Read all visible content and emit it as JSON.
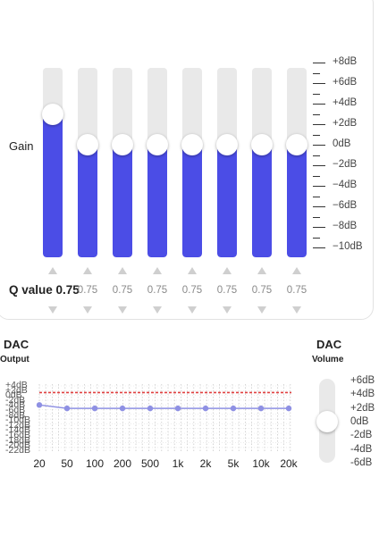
{
  "eq": {
    "gain_label": "Gain",
    "q_label": "Q value 0.75",
    "bands": [
      {
        "gain_db": 3.0,
        "q": "0.75"
      },
      {
        "gain_db": 0,
        "q": "0.75"
      },
      {
        "gain_db": 0,
        "q": "0.75"
      },
      {
        "gain_db": 0,
        "q": "0.75"
      },
      {
        "gain_db": 0,
        "q": "0.75"
      },
      {
        "gain_db": 0,
        "q": "0.75"
      },
      {
        "gain_db": 0,
        "q": "0.75"
      },
      {
        "gain_db": 0,
        "q": "0.75"
      }
    ],
    "scale_labels": [
      "+8dB",
      "+6dB",
      "+4dB",
      "+2dB",
      "0dB",
      "−2dB",
      "−4dB",
      "−6dB",
      "−8dB",
      "−10dB"
    ]
  },
  "dac": {
    "title": "DAC",
    "output_label": "Output",
    "volume_title": "DAC",
    "volume_label": "Volume",
    "y_labels": [
      "+4dB",
      "+2dB",
      "0dB",
      "-2dB",
      "-4dB",
      "-6dB",
      "-8dB",
      "-10dB",
      "-12dB",
      "-14dB",
      "-16dB",
      "-18dB",
      "-20dB",
      "-22dB"
    ],
    "x_labels": [
      "20",
      "50",
      "100",
      "200",
      "500",
      "1k",
      "2k",
      "5k",
      "10k",
      "20k"
    ],
    "curve_db": [
      -0.2,
      -1.6,
      -1.6,
      -1.6,
      -1.6,
      -1.6,
      -1.6,
      -1.6,
      -1.6,
      -1.6
    ],
    "volume_labels": [
      "+6dB",
      "+4dB",
      "+2dB",
      "0dB",
      "-2dB",
      "-4dB",
      "-6dB"
    ],
    "volume_db": 0,
    "colors": {
      "accent": "#4b4de6",
      "curve": "#8e90e3",
      "limit": "#e04040"
    }
  }
}
